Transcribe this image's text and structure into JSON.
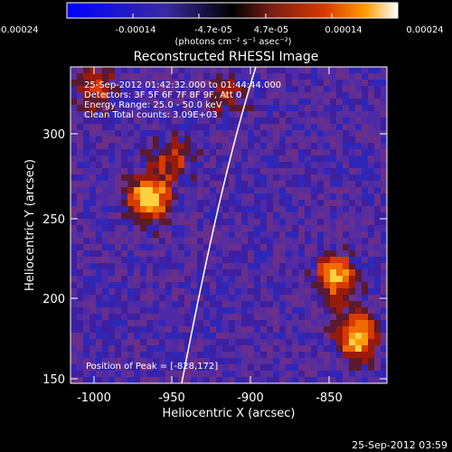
{
  "colorbar": {
    "ticks": [
      "-0.00024",
      "-0.00014",
      "-4.7e-05",
      "4.7e-05",
      "0.00014",
      "0.00024"
    ],
    "units": "(photons cm⁻² s⁻¹ asec⁻²)",
    "colors": [
      "#0000ff",
      "#3a2aa0",
      "#000000",
      "#7a1e12",
      "#d83a00",
      "#ff9a00",
      "#ffffff"
    ],
    "range": [
      -0.00024,
      0.00024
    ]
  },
  "plot": {
    "title": "Reconstructed RHESSI Image",
    "xlabel": "Heliocentric X (arcsec)",
    "ylabel": "Heliocentric Y (arcsec)",
    "x_range": [
      -1015,
      -813
    ],
    "y_range": [
      148,
      332
    ],
    "x_ticks": [
      "-1000",
      "-950",
      "-900",
      "-850"
    ],
    "y_ticks": [
      "150",
      "200",
      "250",
      "300"
    ],
    "limb_color": "#ffffff"
  },
  "info": {
    "time_range": "25-Sep-2012 01:42:32.000 to 01:44:44.000",
    "detectors": "Detectors: 3F 5F 6F 7F 8F 9F, Att 0",
    "energy": "Energy Range: 25.0 - 50.0 keV",
    "clean": "Clean     Total counts: 3.09E+03",
    "peak": "Position of Peak = [-828,172]"
  },
  "footer": {
    "timestamp": "25-Sep-2012 03:59"
  },
  "image": {
    "background_colors": [
      "#3d1fa0",
      "#4e2aa8",
      "#5a2e9a",
      "#2f26b8",
      "#6a2e8a"
    ],
    "sources": [
      {
        "name": "left-cluster",
        "x": -965,
        "y": 255,
        "peak": 1.0
      },
      {
        "name": "left-upper",
        "x": -950,
        "y": 280,
        "peak": 0.55
      },
      {
        "name": "right-lower",
        "x": -832,
        "y": 175,
        "peak": 1.0
      },
      {
        "name": "right-mid",
        "x": -845,
        "y": 210,
        "peak": 0.9
      },
      {
        "name": "top-left",
        "x": -998,
        "y": 320,
        "peak": 0.6
      },
      {
        "name": "upper-mid",
        "x": -915,
        "y": 315,
        "peak": 0.45
      }
    ]
  }
}
